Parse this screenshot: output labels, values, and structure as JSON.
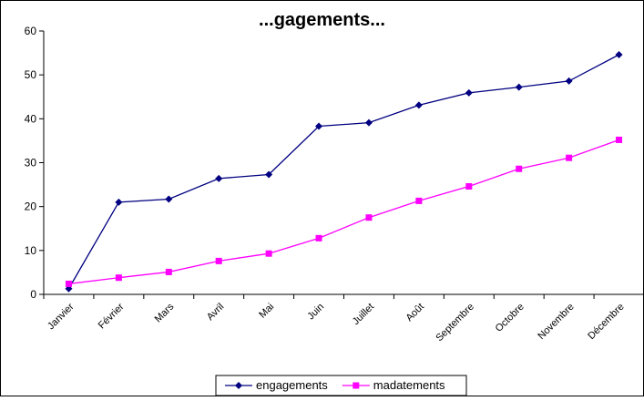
{
  "chart_data": {
    "type": "line",
    "title": "...gagements...",
    "categories": [
      "Janvier",
      "Février",
      "Mars",
      "Avril",
      "Mai",
      "Juin",
      "Juillet",
      "Août",
      "Septembre",
      "Octobre",
      "Novembre",
      "Décembre"
    ],
    "series": [
      {
        "name": "engagements",
        "color": "#000080",
        "marker": "diamond",
        "values": [
          1.3,
          21.0,
          21.7,
          26.4,
          27.3,
          38.3,
          39.1,
          43.1,
          45.9,
          47.2,
          48.6,
          54.6
        ]
      },
      {
        "name": "madatements",
        "color": "#FF00FF",
        "marker": "square",
        "values": [
          2.4,
          3.8,
          5.1,
          7.6,
          9.3,
          12.8,
          17.5,
          21.3,
          24.6,
          28.6,
          31.1,
          35.2
        ]
      }
    ],
    "ylim": [
      0,
      60
    ],
    "yticks": [
      0,
      10,
      20,
      30,
      40,
      50,
      60
    ],
    "grid": false,
    "legend_position": "bottom"
  }
}
